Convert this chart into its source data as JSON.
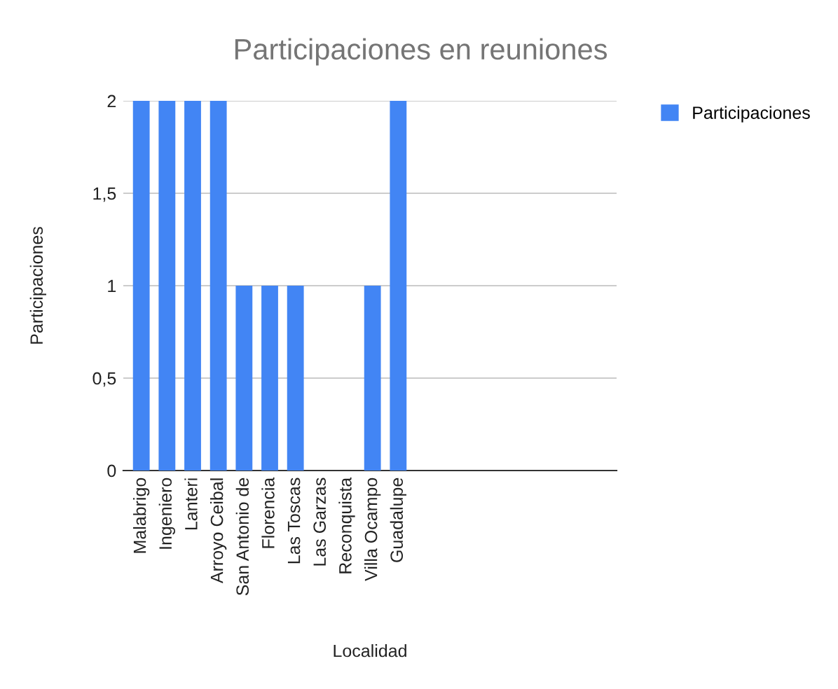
{
  "chart_data": {
    "type": "bar",
    "title": "Participaciones en reuniones",
    "xlabel": "Localidad",
    "ylabel": "Participaciones",
    "categories": [
      "Malabrigo",
      "Ingeniero",
      "Lanteri",
      "Arroyo Ceibal",
      "San Antonio de",
      "Florencia",
      "Las Toscas",
      "Las Garzas",
      "Reconquista",
      "Villa Ocampo",
      "Guadalupe",
      null,
      null,
      null,
      null,
      null,
      null,
      null,
      null
    ],
    "series": [
      {
        "name": "Participaciones",
        "color": "#4285f4",
        "values": [
          2,
          2,
          2,
          2,
          1,
          1,
          1,
          0,
          0,
          1,
          2,
          null,
          null,
          null,
          null,
          null,
          null,
          null,
          null
        ]
      }
    ],
    "ylim": [
      0,
      2
    ],
    "yticks": [
      0,
      {
        "value": 0.5,
        "label": "0,5"
      },
      1,
      {
        "value": 1.5,
        "label": "1,5"
      },
      2
    ],
    "grid": "y",
    "legend": "top right"
  }
}
